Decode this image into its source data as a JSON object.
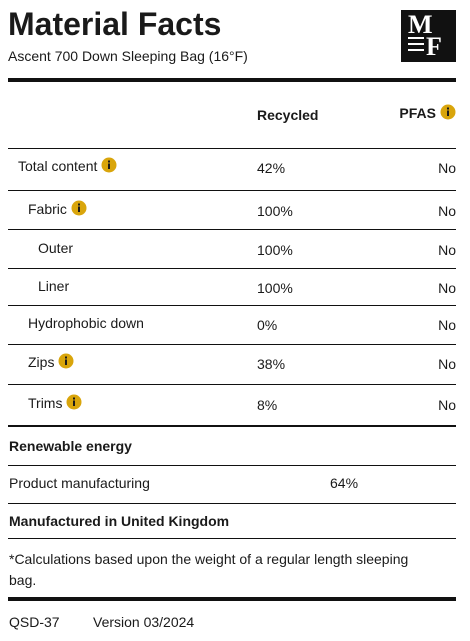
{
  "header": {
    "title": "Material Facts",
    "subtitle": "Ascent 700 Down Sleeping Bag (16°F)",
    "logo": [
      "M",
      "F"
    ]
  },
  "table": {
    "columns": [
      "Recycled",
      "PFAS"
    ],
    "rows": [
      [
        "Total content",
        "42%",
        "No"
      ],
      [
        "Fabric",
        "100%",
        "No"
      ],
      [
        "Outer",
        "100%",
        "No"
      ],
      [
        "Liner",
        "100%",
        "No"
      ],
      [
        "Hydrophobic down",
        "0%",
        "No"
      ],
      [
        "Zips",
        "38%",
        "No"
      ],
      [
        "Trims",
        "8%",
        "No"
      ]
    ]
  },
  "renewable": {
    "title": "Renewable energy",
    "rows": [
      [
        "Product manufacturing",
        "64%"
      ]
    ]
  },
  "origin": "Manufactured in United Kingdom",
  "note": "*Calculations based upon the weight of a regular length sleeping bag.",
  "footer": {
    "code": "QSD-37",
    "version": "Version 03/2024"
  }
}
